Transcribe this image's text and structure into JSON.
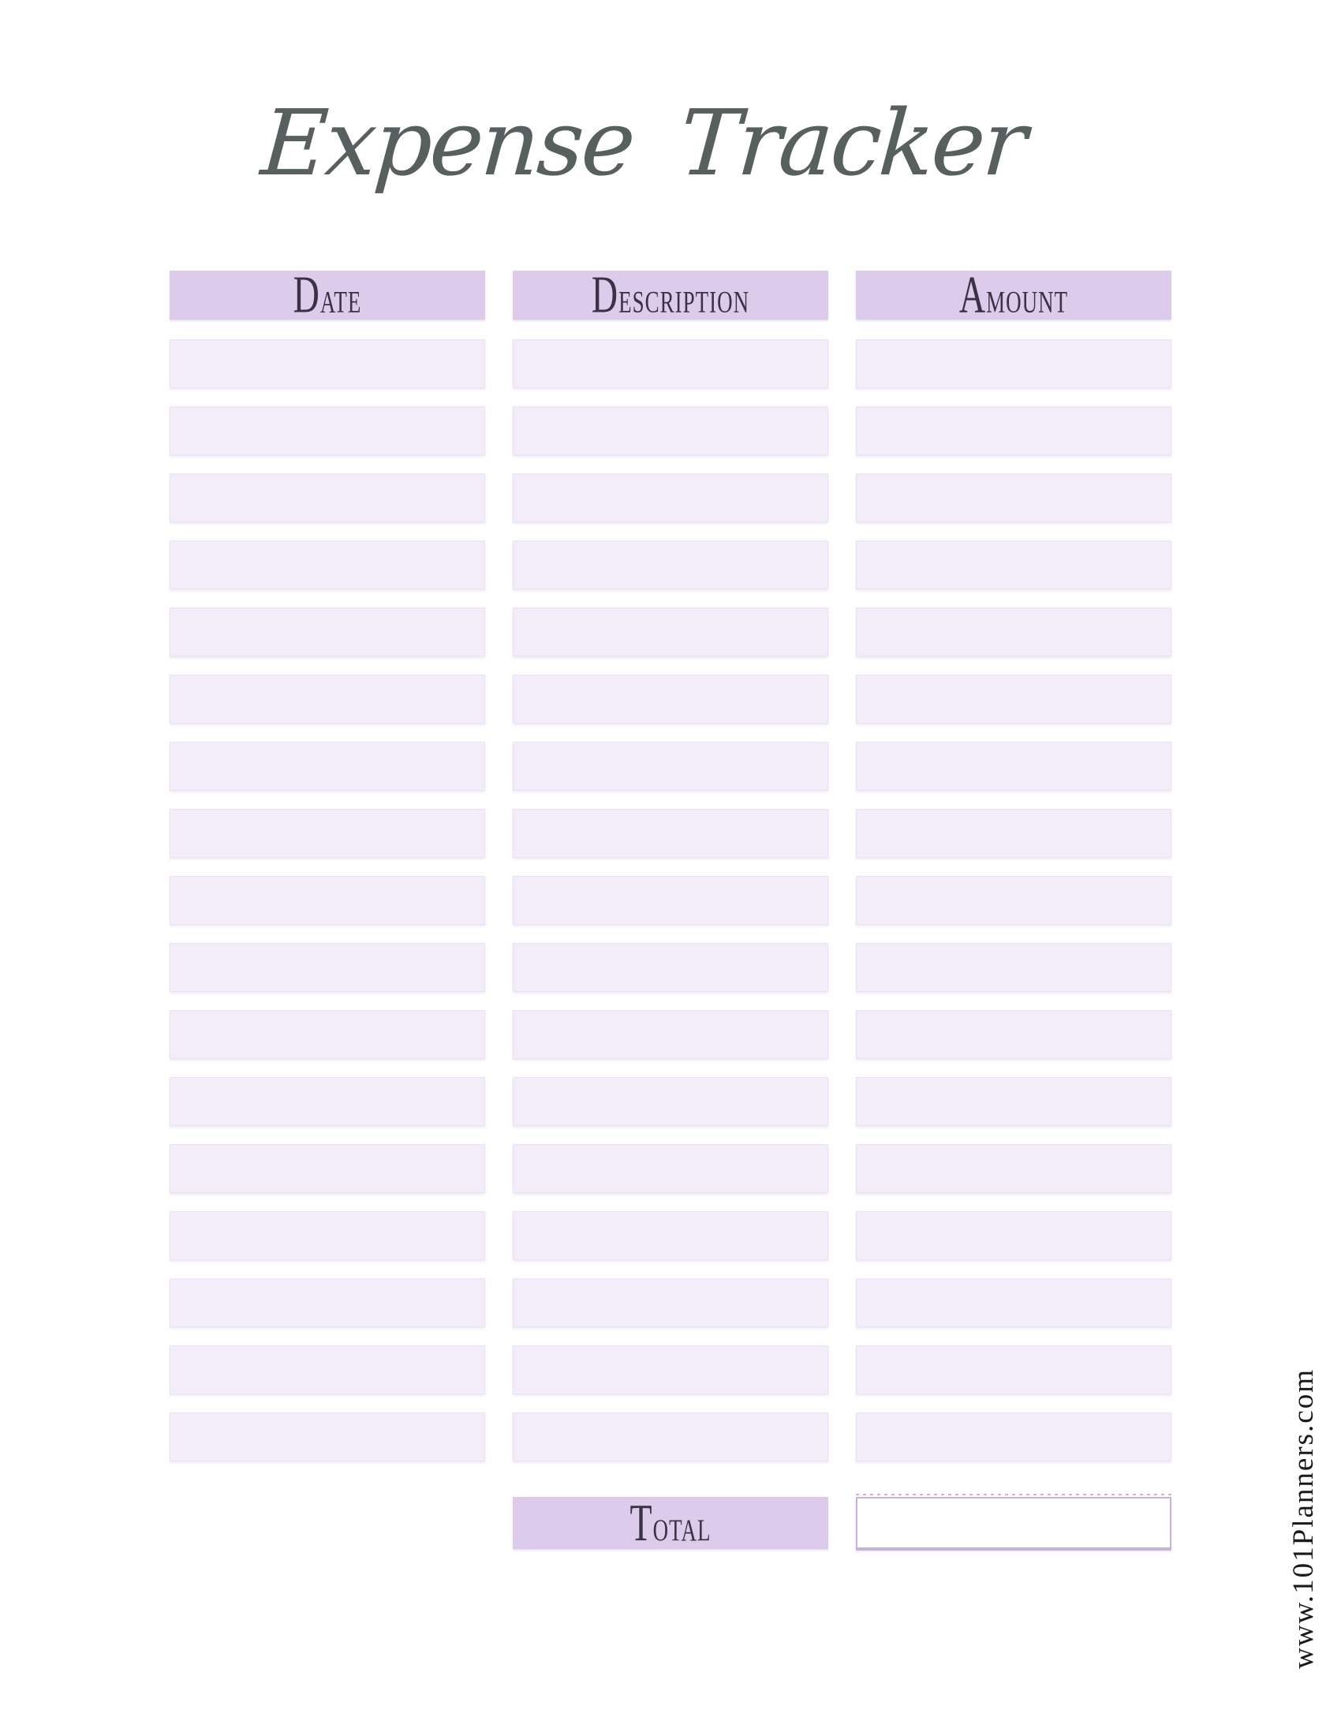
{
  "title": "Expense Tracker",
  "watermark": "www.101Planners.com",
  "table": {
    "headers": {
      "date": "Date",
      "description": "Description",
      "amount": "Amount"
    },
    "rows": [
      {
        "date": "",
        "description": "",
        "amount": ""
      },
      {
        "date": "",
        "description": "",
        "amount": ""
      },
      {
        "date": "",
        "description": "",
        "amount": ""
      },
      {
        "date": "",
        "description": "",
        "amount": ""
      },
      {
        "date": "",
        "description": "",
        "amount": ""
      },
      {
        "date": "",
        "description": "",
        "amount": ""
      },
      {
        "date": "",
        "description": "",
        "amount": ""
      },
      {
        "date": "",
        "description": "",
        "amount": ""
      },
      {
        "date": "",
        "description": "",
        "amount": ""
      },
      {
        "date": "",
        "description": "",
        "amount": ""
      },
      {
        "date": "",
        "description": "",
        "amount": ""
      },
      {
        "date": "",
        "description": "",
        "amount": ""
      },
      {
        "date": "",
        "description": "",
        "amount": ""
      },
      {
        "date": "",
        "description": "",
        "amount": ""
      },
      {
        "date": "",
        "description": "",
        "amount": ""
      },
      {
        "date": "",
        "description": "",
        "amount": ""
      },
      {
        "date": "",
        "description": "",
        "amount": ""
      }
    ],
    "footer": {
      "total_label": "Total",
      "total_value": ""
    }
  },
  "colors": {
    "header-fill": "#dccbea",
    "row-fill": "#f2edf8",
    "header-text": "#3a3144",
    "title-color": "#575f5f",
    "total-box-border": "#c7b2db",
    "watermark-color": "#1a1a1a"
  }
}
